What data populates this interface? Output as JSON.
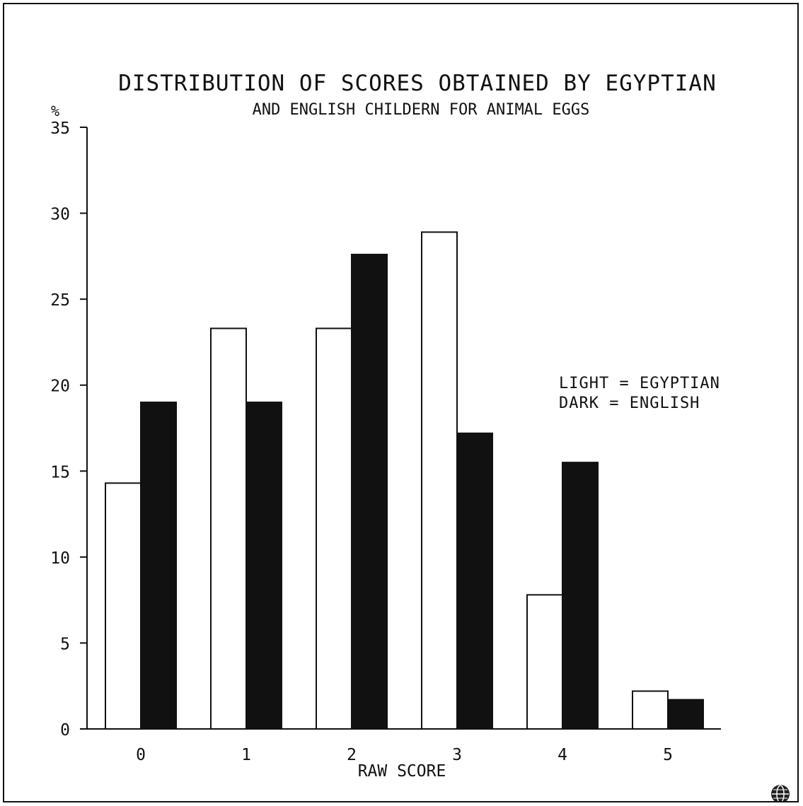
{
  "chart_data": {
    "type": "bar",
    "title": "DISTRIBUTION OF SCORES OBTAINED BY EGYPTIAN",
    "subtitle": "AND ENGLISH CHILDERN FOR ANIMAL EGGS",
    "y_unit": "%",
    "xlabel": "RAW SCORE",
    "ylabel": "",
    "categories": [
      "0",
      "1",
      "2",
      "3",
      "4",
      "5"
    ],
    "ylim": [
      0,
      35
    ],
    "yticks": [
      "0",
      "5",
      "10",
      "15",
      "20",
      "25",
      "30",
      "35"
    ],
    "series": [
      {
        "name": "EGYPTIAN",
        "values": [
          14.3,
          23.3,
          23.3,
          28.9,
          7.8,
          2.2
        ],
        "color": "#ffffff"
      },
      {
        "name": "ENGLISH",
        "values": [
          19.0,
          19.0,
          27.6,
          17.2,
          15.5,
          1.7
        ],
        "color": "#111111"
      }
    ],
    "legend": [
      "LIGHT = EGYPTIAN",
      "DARK = ENGLISH"
    ],
    "legend_position": "right",
    "grid": false
  }
}
